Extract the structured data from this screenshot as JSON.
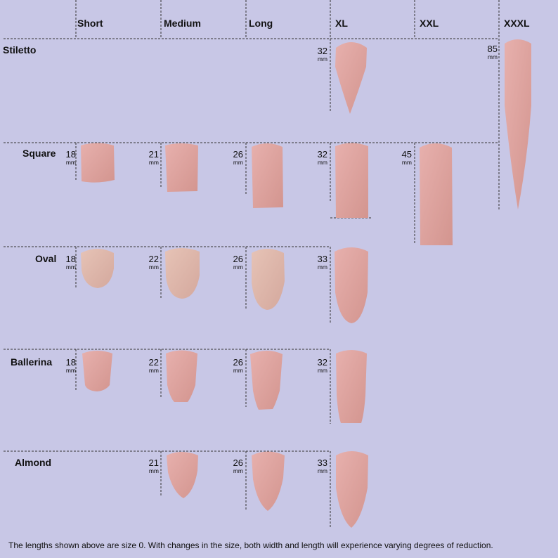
{
  "columns": [
    "Short",
    "Medium",
    "Long",
    "XL",
    "XXL",
    "XXXL"
  ],
  "rows": [
    {
      "label": "Stiletto",
      "entries": [
        {
          "size": "XL",
          "length": "32",
          "unit": "mm"
        },
        {
          "size": "XXXL",
          "length": "85",
          "unit": "mm"
        }
      ]
    },
    {
      "label": "Square",
      "entries": [
        {
          "size": "Short",
          "length": "18",
          "unit": "mm"
        },
        {
          "size": "Medium",
          "length": "21",
          "unit": "mm"
        },
        {
          "size": "Long",
          "length": "26",
          "unit": "mm"
        },
        {
          "size": "XL",
          "length": "32",
          "unit": "mm"
        },
        {
          "size": "XXL",
          "length": "45",
          "unit": "mm"
        }
      ]
    },
    {
      "label": "Oval",
      "entries": [
        {
          "size": "Short",
          "length": "18",
          "unit": "mm"
        },
        {
          "size": "Medium",
          "length": "22",
          "unit": "mm"
        },
        {
          "size": "Long",
          "length": "26",
          "unit": "mm"
        },
        {
          "size": "XL",
          "length": "33",
          "unit": "mm"
        }
      ]
    },
    {
      "label": "Ballerina",
      "entries": [
        {
          "size": "Short",
          "length": "18",
          "unit": "mm"
        },
        {
          "size": "Medium",
          "length": "22",
          "unit": "mm"
        },
        {
          "size": "Long",
          "length": "26",
          "unit": "mm"
        },
        {
          "size": "XL",
          "length": "32",
          "unit": "mm"
        }
      ]
    },
    {
      "label": "Almond",
      "entries": [
        {
          "size": "Medium",
          "length": "21",
          "unit": "mm"
        },
        {
          "size": "Long",
          "length": "26",
          "unit": "mm"
        },
        {
          "size": "XL",
          "length": "33",
          "unit": "mm"
        }
      ]
    }
  ],
  "footer": "The lengths shown above are size 0. With changes in the size, both width and length will experience varying degrees of reduction.",
  "colors": {
    "background": "#c8c7e6",
    "nail_top": "#e4a9a6",
    "nail_bottom": "#d69994",
    "grid": "#333333"
  }
}
